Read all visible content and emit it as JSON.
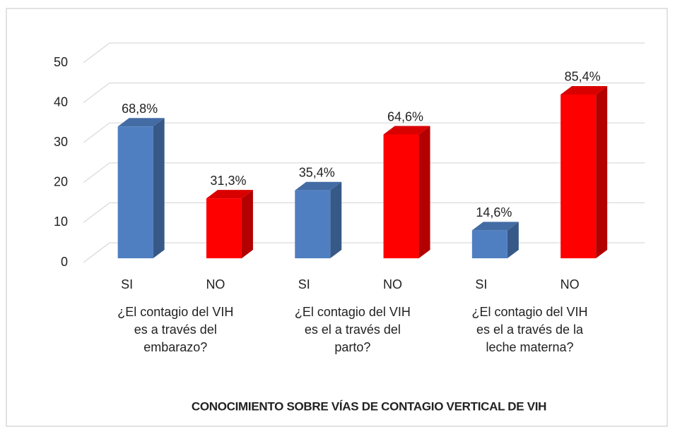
{
  "chart_data": {
    "type": "bar3d",
    "title": "CONOCIMIENTO SOBRE VÍAS DE CONTAGIO VERTICAL DE VIH",
    "categories": [
      "SI",
      "NO",
      "SI",
      "NO",
      "SI",
      "NO"
    ],
    "groups": [
      [
        "¿El contagio del VIH",
        "es a través del",
        "embarazo?"
      ],
      [
        "¿El contagio del VIH",
        "es el a través del",
        "parto?"
      ],
      [
        "¿El contagio del VIH",
        "es el a través de la",
        "leche materna?"
      ]
    ],
    "values": [
      33,
      15,
      17,
      31,
      7,
      41
    ],
    "percent": [
      68.8,
      31.3,
      35.4,
      64.6,
      14.6,
      85.4
    ],
    "percent_labels": [
      "68,8%",
      "31,3%",
      "35,4%",
      "64,6%",
      "14,6%",
      "85,4%"
    ],
    "colors": [
      "#4f7fc1",
      "#ff0000",
      "#4f7fc1",
      "#ff0000",
      "#4f7fc1",
      "#ff0000"
    ],
    "ylim": [
      0,
      50
    ],
    "yticks": [
      0,
      10,
      20,
      30,
      40,
      50
    ],
    "grid": true
  }
}
